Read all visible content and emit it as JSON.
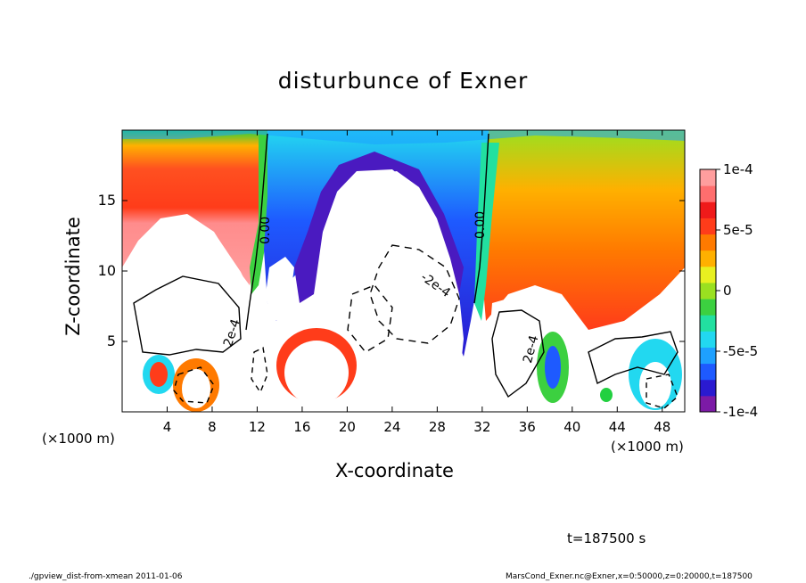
{
  "chart_data": {
    "type": "heatmap",
    "title": "disturbunce of Exner",
    "xlabel": "X-coordinate",
    "ylabel": "Z-coordinate",
    "x_unit": "(×1000 m)",
    "x_unit_right": "(×1000 m)",
    "xlim": [
      0,
      50
    ],
    "ylim": [
      0,
      20
    ],
    "x_ticks": [
      4,
      8,
      12,
      16,
      20,
      24,
      28,
      32,
      36,
      40,
      44,
      48
    ],
    "y_ticks": [
      5,
      10,
      15
    ],
    "colorbar": {
      "range": [
        -0.0001,
        0.0001
      ],
      "tick_labels": [
        "1e-4",
        "5e-5",
        "0",
        "-5e-5",
        "-1e-4"
      ],
      "tick_values": [
        0.0001,
        5e-05,
        0,
        -5e-05,
        -0.0001
      ],
      "colors": [
        "#7c1aa6",
        "#2a1ad0",
        "#1e5aff",
        "#1ea0ff",
        "#22d8f0",
        "#22e0a0",
        "#3cd040",
        "#9ae020",
        "#e8f020",
        "#ffb000",
        "#ff7a00",
        "#ff3c1a",
        "#ef1a1a",
        "#ff6e6e",
        "#ff9e9e"
      ]
    },
    "contour_labels": [
      "0.00",
      "0.00",
      "-2e-4",
      "-2e-4",
      "2e-4",
      "2e-4"
    ],
    "time_label": "t=187500 s",
    "footer_left": "./gpview_dist-from-xmean  2011-01-06",
    "footer_right": "MarsCond_Exner.nc@Exner,x=0:50000,z=0:20000,t=187500"
  }
}
